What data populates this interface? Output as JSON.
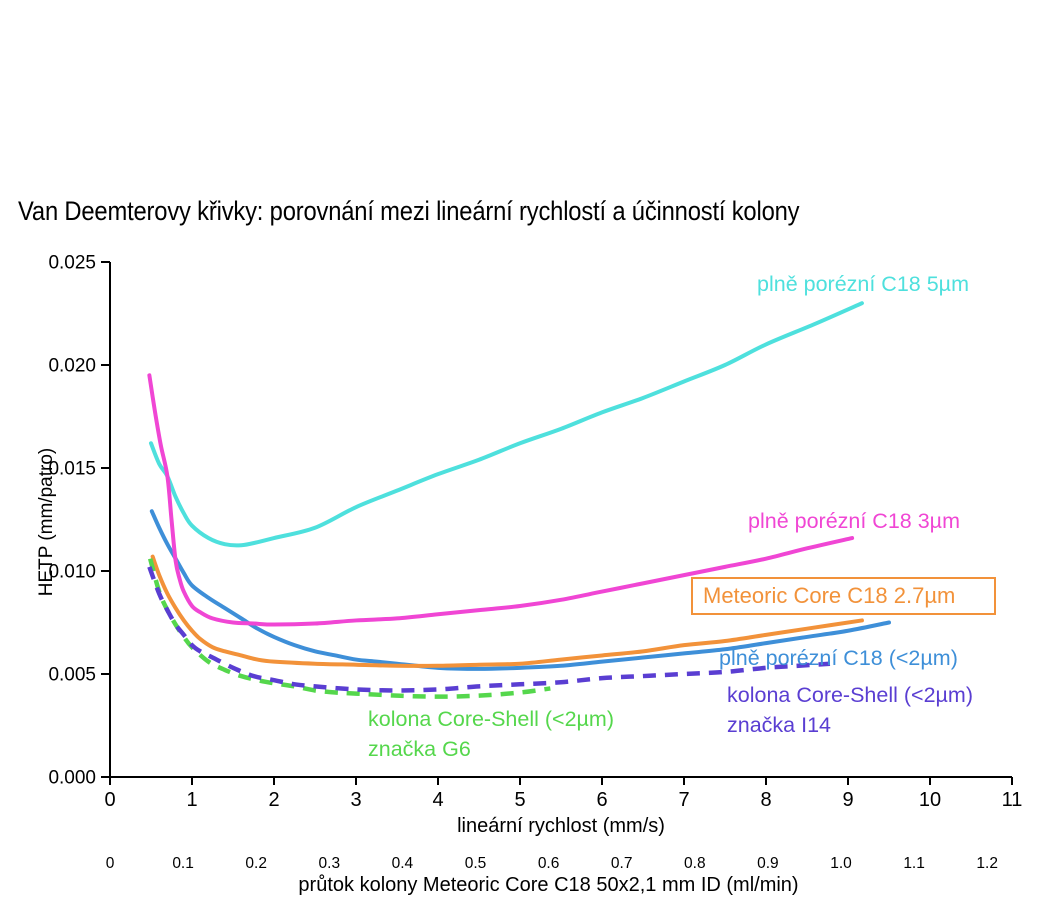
{
  "title": "Van Deemterovy křivky: porovnání mezi lineární rychlostí a účinností kolony",
  "chart_data": {
    "type": "line",
    "title": "Van Deemterovy křivky: porovnání mezi lineární rychlostí a účinností kolony",
    "xlabel": "lineární rychlost (mm/s)",
    "ylabel": "HETP (mm/patro)",
    "x2label": "průtok kolony Meteoric Core C18 50x2,1 mm ID (ml/min)",
    "xlim": [
      0,
      11
    ],
    "ylim": [
      0,
      0.025
    ],
    "x2lim": [
      0,
      1.2
    ],
    "grid": false,
    "legend_position": "inline-labels",
    "x_ticks": [
      "0",
      "1",
      "2",
      "3",
      "4",
      "5",
      "6",
      "7",
      "8",
      "9",
      "10",
      "11"
    ],
    "y_ticks": [
      "0.000",
      "0.005",
      "0.010",
      "0.015",
      "0.020",
      "0.025"
    ],
    "x2_ticks": [
      "0",
      "0.1",
      "0.2",
      "0.3",
      "0.4",
      "0.5",
      "0.6",
      "0.7",
      "0.8",
      "0.9",
      "1.0",
      "1.1",
      "1.2"
    ],
    "series": [
      {
        "id": "c18-5um",
        "label_lines": [
          "plně porézní C18 5µm"
        ],
        "color": "#4EE0DD",
        "style": "solid",
        "boxed": false,
        "points": [
          [
            0.5,
            0.0162
          ],
          [
            0.6,
            0.0152
          ],
          [
            0.7,
            0.0146
          ],
          [
            0.8,
            0.0136
          ],
          [
            0.9,
            0.0128
          ],
          [
            1.0,
            0.0122
          ],
          [
            1.2,
            0.0116
          ],
          [
            1.4,
            0.0113
          ],
          [
            1.6,
            0.01125
          ],
          [
            1.8,
            0.0114
          ],
          [
            2.0,
            0.0116
          ],
          [
            2.5,
            0.0121
          ],
          [
            3.0,
            0.0131
          ],
          [
            3.5,
            0.0139
          ],
          [
            4.0,
            0.0147
          ],
          [
            4.5,
            0.0154
          ],
          [
            5.0,
            0.0162
          ],
          [
            5.5,
            0.0169
          ],
          [
            6.0,
            0.0177
          ],
          [
            6.5,
            0.0184
          ],
          [
            7.0,
            0.0192
          ],
          [
            7.5,
            0.02
          ],
          [
            8.0,
            0.021
          ],
          [
            8.6,
            0.022
          ],
          [
            9.17,
            0.023
          ]
        ]
      },
      {
        "id": "c18-3um",
        "label_lines": [
          "plně porézní C18 3µm"
        ],
        "color": "#F046D4",
        "style": "solid",
        "boxed": false,
        "points": [
          [
            0.48,
            0.0195
          ],
          [
            0.55,
            0.0177
          ],
          [
            0.62,
            0.0161
          ],
          [
            0.7,
            0.0146
          ],
          [
            0.75,
            0.0125
          ],
          [
            0.8,
            0.0105
          ],
          [
            0.85,
            0.0096
          ],
          [
            0.9,
            0.009
          ],
          [
            1.0,
            0.0083
          ],
          [
            1.1,
            0.008
          ],
          [
            1.25,
            0.0077
          ],
          [
            1.5,
            0.0075
          ],
          [
            1.75,
            0.00745
          ],
          [
            2.0,
            0.0074
          ],
          [
            2.5,
            0.00745
          ],
          [
            3.0,
            0.0076
          ],
          [
            3.5,
            0.0077
          ],
          [
            4.0,
            0.0079
          ],
          [
            4.5,
            0.0081
          ],
          [
            5.0,
            0.0083
          ],
          [
            5.5,
            0.0086
          ],
          [
            6.0,
            0.009
          ],
          [
            6.5,
            0.0094
          ],
          [
            7.0,
            0.0098
          ],
          [
            7.5,
            0.0102
          ],
          [
            8.0,
            0.0106
          ],
          [
            8.5,
            0.0111
          ],
          [
            9.05,
            0.0116
          ]
        ]
      },
      {
        "id": "meteoric-core",
        "label_lines": [
          "Meteoric Core C18 2.7µm"
        ],
        "color": "#F2923A",
        "style": "solid",
        "boxed": true,
        "points": [
          [
            0.52,
            0.0107
          ],
          [
            0.6,
            0.0098
          ],
          [
            0.7,
            0.0089
          ],
          [
            0.8,
            0.0082
          ],
          [
            0.9,
            0.0076
          ],
          [
            1.0,
            0.0071
          ],
          [
            1.1,
            0.0067
          ],
          [
            1.25,
            0.0063
          ],
          [
            1.4,
            0.0061
          ],
          [
            1.6,
            0.0059
          ],
          [
            1.8,
            0.0057
          ],
          [
            2.0,
            0.0056
          ],
          [
            2.5,
            0.0055
          ],
          [
            3.0,
            0.00545
          ],
          [
            3.5,
            0.0054
          ],
          [
            4.0,
            0.0054
          ],
          [
            4.5,
            0.00545
          ],
          [
            5.0,
            0.0055
          ],
          [
            5.5,
            0.0057
          ],
          [
            6.0,
            0.0059
          ],
          [
            6.5,
            0.0061
          ],
          [
            7.0,
            0.0064
          ],
          [
            7.5,
            0.0066
          ],
          [
            8.0,
            0.0069
          ],
          [
            8.5,
            0.0072
          ],
          [
            9.17,
            0.0076
          ]
        ]
      },
      {
        "id": "c18-sub2um",
        "label_lines": [
          "plně porézní C18 (<2µm)"
        ],
        "color": "#3E8FD8",
        "style": "solid",
        "boxed": false,
        "points": [
          [
            0.51,
            0.0129
          ],
          [
            0.6,
            0.0121
          ],
          [
            0.7,
            0.0113
          ],
          [
            0.8,
            0.0106
          ],
          [
            0.9,
            0.0099
          ],
          [
            1.0,
            0.0093
          ],
          [
            1.2,
            0.0087
          ],
          [
            1.4,
            0.0082
          ],
          [
            1.6,
            0.0077
          ],
          [
            1.8,
            0.0072
          ],
          [
            2.0,
            0.0068
          ],
          [
            2.25,
            0.0064
          ],
          [
            2.5,
            0.0061
          ],
          [
            2.75,
            0.0059
          ],
          [
            3.0,
            0.0057
          ],
          [
            3.25,
            0.0056
          ],
          [
            3.5,
            0.0055
          ],
          [
            4.0,
            0.0053
          ],
          [
            4.5,
            0.00525
          ],
          [
            5.0,
            0.0053
          ],
          [
            5.5,
            0.0054
          ],
          [
            6.0,
            0.0056
          ],
          [
            6.5,
            0.0058
          ],
          [
            7.0,
            0.006
          ],
          [
            7.5,
            0.0062
          ],
          [
            8.0,
            0.0065
          ],
          [
            8.5,
            0.0068
          ],
          [
            9.0,
            0.0071
          ],
          [
            9.5,
            0.0075
          ]
        ]
      },
      {
        "id": "coreshell-i14",
        "label_lines": [
          "kolona Core-Shell (<2µm)",
          "značka I14"
        ],
        "color": "#5A3ED2",
        "style": "dashed",
        "boxed": false,
        "points": [
          [
            0.48,
            0.0102
          ],
          [
            0.6,
            0.0089
          ],
          [
            0.7,
            0.0081
          ],
          [
            0.8,
            0.0074
          ],
          [
            0.9,
            0.0069
          ],
          [
            1.0,
            0.0064
          ],
          [
            1.1,
            0.0061
          ],
          [
            1.25,
            0.0058
          ],
          [
            1.5,
            0.0053
          ],
          [
            1.75,
            0.0049
          ],
          [
            2.0,
            0.0047
          ],
          [
            2.25,
            0.0045
          ],
          [
            2.5,
            0.0044
          ],
          [
            3.0,
            0.00425
          ],
          [
            3.5,
            0.0042
          ],
          [
            4.0,
            0.00425
          ],
          [
            4.5,
            0.0044
          ],
          [
            5.0,
            0.0045
          ],
          [
            5.5,
            0.0046
          ],
          [
            6.0,
            0.0048
          ],
          [
            6.5,
            0.0049
          ],
          [
            7.0,
            0.005
          ],
          [
            7.5,
            0.0051
          ],
          [
            8.0,
            0.0053
          ],
          [
            8.4,
            0.0054
          ],
          [
            8.78,
            0.0055
          ]
        ]
      },
      {
        "id": "coreshell-g6",
        "label_lines": [
          "kolona Core-Shell (<2µm)",
          "značka G6"
        ],
        "color": "#55D74C",
        "style": "dashed",
        "boxed": false,
        "points": [
          [
            0.49,
            0.0106
          ],
          [
            0.6,
            0.009
          ],
          [
            0.7,
            0.0081
          ],
          [
            0.8,
            0.0074
          ],
          [
            0.9,
            0.0068
          ],
          [
            1.0,
            0.0063
          ],
          [
            1.2,
            0.0056
          ],
          [
            1.4,
            0.0052
          ],
          [
            1.6,
            0.0049
          ],
          [
            1.8,
            0.0047
          ],
          [
            2.0,
            0.00455
          ],
          [
            2.25,
            0.0044
          ],
          [
            2.5,
            0.0042
          ],
          [
            2.75,
            0.0041
          ],
          [
            3.0,
            0.00405
          ],
          [
            3.5,
            0.00395
          ],
          [
            4.0,
            0.0039
          ],
          [
            4.5,
            0.00395
          ],
          [
            5.0,
            0.0041
          ],
          [
            5.37,
            0.0043
          ]
        ]
      }
    ]
  }
}
